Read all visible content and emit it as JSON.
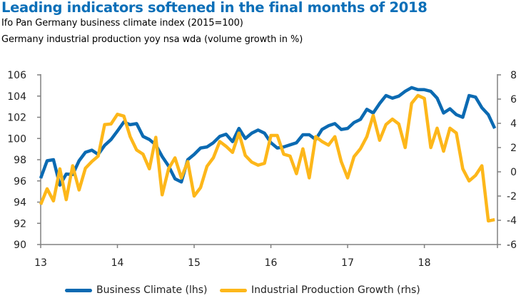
{
  "chart_data": {
    "type": "line",
    "title": "Leading indicators softened in the final months of 2018",
    "subtitles": [
      "Ifo Pan Germany business climate index (2015=100)",
      "Germany industrial production yoy nsa wda (volume growth in %)"
    ],
    "x_tick_labels": [
      "13",
      "14",
      "15",
      "16",
      "17",
      "18"
    ],
    "x_range": [
      "2013-01",
      "2018-12"
    ],
    "frequency": "monthly",
    "y_left": {
      "range": [
        90,
        106
      ],
      "ticks": [
        "90",
        "92",
        "94",
        "96",
        "98",
        "100",
        "102",
        "104",
        "106"
      ]
    },
    "y_right": {
      "range": [
        -6,
        8
      ],
      "ticks": [
        "-6",
        "-4",
        "-2",
        "0",
        "2",
        "4",
        "6",
        "8"
      ]
    },
    "grid": false,
    "legend_position": "bottom",
    "series": [
      {
        "name": "Business Climate (lhs)",
        "axis": "left",
        "color": "#0B6AB2",
        "values": [
          96.25,
          97.9,
          98.0,
          95.6,
          96.65,
          96.6,
          97.9,
          98.7,
          98.9,
          98.5,
          99.35,
          99.9,
          100.7,
          101.55,
          101.3,
          101.4,
          100.2,
          99.9,
          99.4,
          98.3,
          97.4,
          96.2,
          95.9,
          98.0,
          98.5,
          99.1,
          99.2,
          99.6,
          100.2,
          100.4,
          99.7,
          100.95,
          100.0,
          100.5,
          100.8,
          100.5,
          99.6,
          99.1,
          99.2,
          99.4,
          99.6,
          100.35,
          100.35,
          99.9,
          100.85,
          101.2,
          101.4,
          100.85,
          100.95,
          101.5,
          101.8,
          102.75,
          102.4,
          103.3,
          104.05,
          103.8,
          104.0,
          104.45,
          104.8,
          104.6,
          104.6,
          104.45,
          103.8,
          102.4,
          102.8,
          102.25,
          102.0,
          104.05,
          103.9,
          102.9,
          102.25,
          100.95
        ]
      },
      {
        "name": "Industrial Production Growth (rhs)",
        "axis": "right",
        "color": "#FDB71A",
        "values": [
          -2.7,
          -1.4,
          -2.4,
          0.25,
          -2.3,
          0.5,
          -1.5,
          0.3,
          0.85,
          1.3,
          3.9,
          3.95,
          4.75,
          4.6,
          2.9,
          1.8,
          1.45,
          0.25,
          2.85,
          -1.9,
          0.25,
          1.15,
          -0.5,
          0.85,
          -2.0,
          -1.3,
          0.45,
          1.15,
          2.5,
          2.1,
          1.6,
          3.2,
          1.35,
          0.8,
          0.55,
          0.7,
          3.0,
          3.0,
          1.45,
          1.3,
          -0.15,
          1.9,
          -0.5,
          2.9,
          2.5,
          2.2,
          2.9,
          0.85,
          -0.5,
          1.25,
          1.9,
          2.9,
          4.65,
          2.6,
          3.9,
          4.35,
          3.95,
          2.0,
          5.65,
          6.3,
          6.05,
          2.0,
          3.6,
          1.7,
          3.6,
          3.2,
          0.25,
          -0.75,
          -0.3,
          0.5,
          -4.05,
          -3.95
        ]
      }
    ]
  }
}
